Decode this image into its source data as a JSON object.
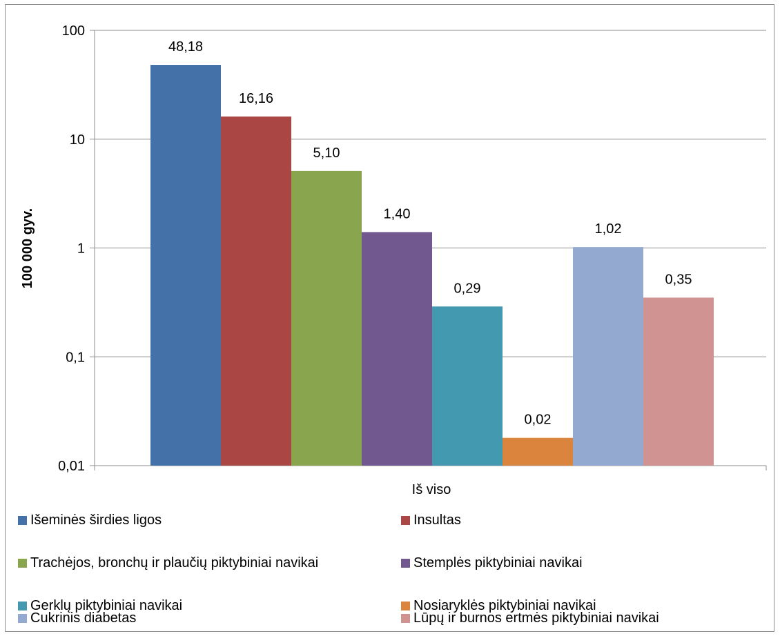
{
  "chart_data": {
    "type": "bar",
    "scale": "log",
    "ylabel": "100 000 gyv.",
    "xlabel": "Iš viso",
    "ylim": [
      0.01,
      100
    ],
    "yticks": [
      "0,01",
      "0,1",
      "1",
      "10",
      "100"
    ],
    "grid": true,
    "legend_position": "bottom",
    "categories": [
      "Iš viso"
    ],
    "series": [
      {
        "name": "Išeminės širdies ligos",
        "value": 48.18,
        "label": "48,18",
        "color": "#4472a8"
      },
      {
        "name": "Insultas",
        "value": 16.16,
        "label": "16,16",
        "color": "#aa4644"
      },
      {
        "name": "Trachėjos, bronchų ir plaučių piktybiniai navikai",
        "value": 5.1,
        "label": "5,10",
        "color": "#89a64e"
      },
      {
        "name": "Stemplės piktybiniai navikai",
        "value": 1.4,
        "label": "1,40",
        "color": "#71588f"
      },
      {
        "name": "Gerklų piktybiniai navikai",
        "value": 0.29,
        "label": "0,29",
        "color": "#4299b0"
      },
      {
        "name": "Nosiaryklės piktybiniai navikai",
        "value": 0.018,
        "label": "0,02",
        "color": "#db843d"
      },
      {
        "name": "Cukrinis diabetas",
        "value": 1.02,
        "label": "1,02",
        "color": "#93a9cf"
      },
      {
        "name": "Lūpų ir burnos ertmės piktybiniai navikai",
        "value": 0.35,
        "label": "0,35",
        "color": "#d09392"
      }
    ]
  }
}
